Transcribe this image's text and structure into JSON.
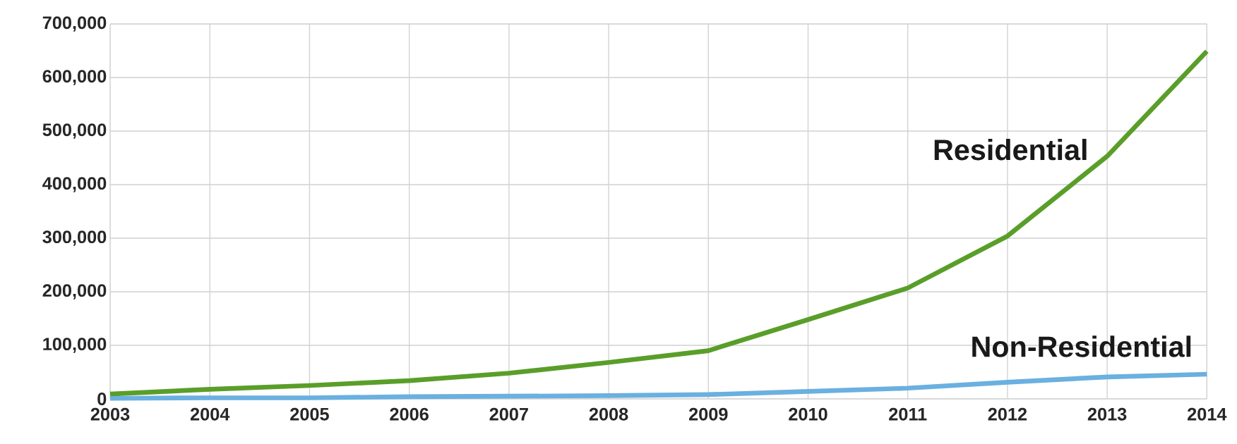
{
  "chart_data": {
    "type": "line",
    "x": [
      2003,
      2004,
      2005,
      2006,
      2007,
      2008,
      2009,
      2010,
      2011,
      2012,
      2013,
      2014
    ],
    "series": [
      {
        "name": "Residential",
        "color": "#5a9e2a",
        "values": [
          9000,
          18000,
          25000,
          34000,
          48000,
          68000,
          90000,
          148000,
          207000,
          304000,
          453000,
          649000
        ]
      },
      {
        "name": "Non-Residential",
        "color": "#6ab0e0",
        "values": [
          1000,
          2000,
          2000,
          4000,
          5000,
          6000,
          8000,
          14000,
          20000,
          31000,
          41000,
          46000
        ]
      }
    ],
    "xlim": [
      2003,
      2014
    ],
    "xticks": [
      2003,
      2004,
      2005,
      2006,
      2007,
      2008,
      2009,
      2010,
      2011,
      2012,
      2013,
      2014
    ],
    "ylim": [
      0,
      700000
    ],
    "yticks": [
      {
        "value": 0,
        "label": "0"
      },
      {
        "value": 100000,
        "label": "100,000"
      },
      {
        "value": 200000,
        "label": "200,000"
      },
      {
        "value": 300000,
        "label": "300,000"
      },
      {
        "value": 400000,
        "label": "400,000"
      },
      {
        "value": 500000,
        "label": "500,000"
      },
      {
        "value": 600000,
        "label": "600,000"
      },
      {
        "value": 700000,
        "label": "700,000"
      }
    ],
    "grid": true,
    "legend": false,
    "marker": "none",
    "line_style": "solid"
  }
}
